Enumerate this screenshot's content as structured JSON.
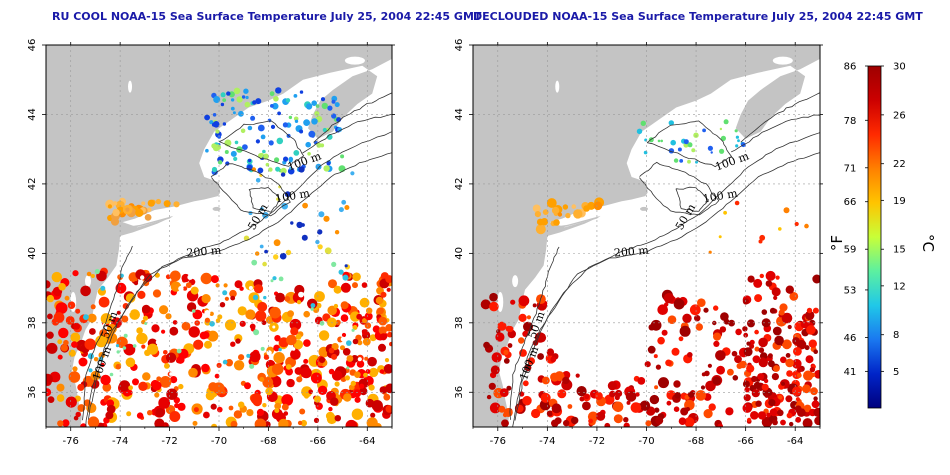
{
  "panels": [
    {
      "title": "RU COOL NOAA-15 Sea Surface Temperature July 25, 2004 22:45 GMT",
      "variant": "raw"
    },
    {
      "title": "DECLOUDED NOAA-15 Sea Surface Temperature July 25, 2004 22:45 GMT",
      "variant": "declouded"
    }
  ],
  "x_ticks": [
    "-76",
    "-74",
    "-72",
    "-70",
    "-68",
    "-66",
    "-64"
  ],
  "y_ticks": [
    "36",
    "38",
    "40",
    "42",
    "44",
    "46"
  ],
  "isobath_labels": [
    "100 m",
    "100 m",
    "50 m",
    "200 m",
    "50 m",
    "100 m"
  ],
  "colorbar": {
    "f_ticks": [
      "86",
      "78",
      "71",
      "66",
      "59",
      "53",
      "46",
      "41"
    ],
    "c_ticks": [
      "30",
      "26",
      "22",
      "19",
      "15",
      "12",
      "8",
      "5"
    ],
    "f_unit": "°F",
    "c_unit": "°C",
    "colors": [
      "#9e0000",
      "#cc0000",
      "#ff2a00",
      "#ff8000",
      "#ffc400",
      "#c8ff38",
      "#5cf0a0",
      "#20c8e8",
      "#1a78f0",
      "#0024c8",
      "#00007e"
    ]
  },
  "colors": {
    "land": "#c4c4c4",
    "ocean": "#ffffff",
    "grid": "#9a9a9a",
    "title": "#1a1aa8"
  }
}
